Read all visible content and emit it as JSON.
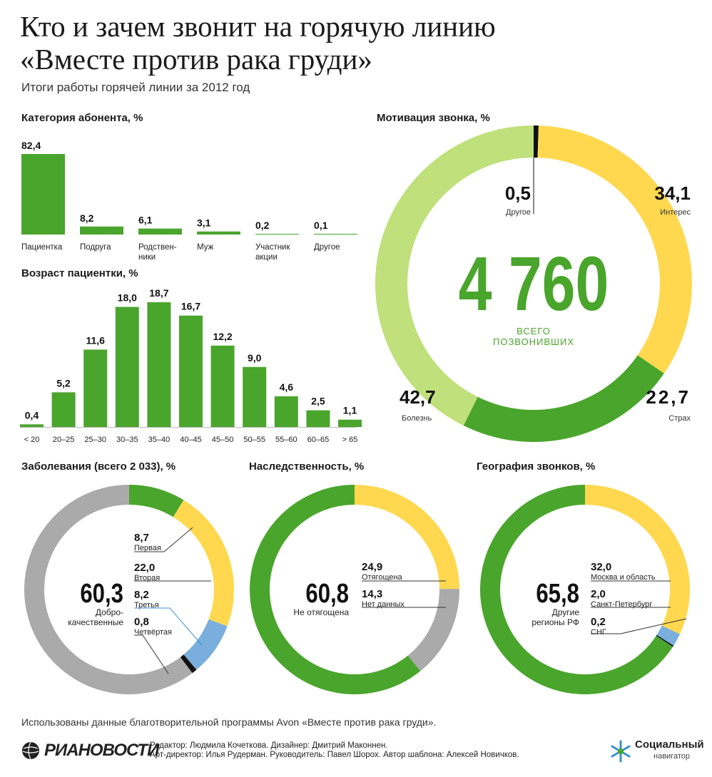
{
  "header": {
    "title_line1": "Кто и зачем звонит на горячую линию",
    "title_line2": "«Вместе против рака груди»",
    "subtitle": "Итоги работы горячей линии за 2012 год"
  },
  "colors": {
    "green": "#4aa52c",
    "light_green": "#bfe07a",
    "yellow": "#ffd84f",
    "gray": "#aaaaaa",
    "blue": "#7aaedc",
    "black": "#111111"
  },
  "chart_data": [
    {
      "id": "category",
      "type": "bar",
      "title": "Категория абонента, %",
      "categories": [
        "Пациентка",
        "Подруга",
        "Родствен-\nники",
        "Муж",
        "Участник\nакции",
        "Другое"
      ],
      "values": [
        82.4,
        8.2,
        6.1,
        3.1,
        0.2,
        0.1
      ],
      "value_labels": [
        "82,4",
        "8,2",
        "6,1",
        "3,1",
        "0,2",
        "0,1"
      ]
    },
    {
      "id": "age",
      "type": "bar",
      "title": "Возраст пациентки, %",
      "categories": [
        "< 20",
        "20–25",
        "25–30",
        "30–35",
        "35–40",
        "40–45",
        "45–50",
        "50–55",
        "55–60",
        "60–65",
        "> 65"
      ],
      "values": [
        0.4,
        5.2,
        11.6,
        18.0,
        18.7,
        16.7,
        12.2,
        9.0,
        4.6,
        2.5,
        1.1
      ],
      "value_labels": [
        "0,4",
        "5,2",
        "11,6",
        "18,0",
        "18,7",
        "16,7",
        "12,2",
        "9,0",
        "4,6",
        "2,5",
        "1,1"
      ]
    },
    {
      "id": "motivation",
      "type": "pie",
      "title": "Мотивация звонка, %",
      "center_value": "4 760",
      "center_label": "ВСЕГО\nПОЗВОНИВШИХ",
      "slices": [
        {
          "name": "Другое",
          "value": 0.5,
          "label": "0,5",
          "color": "#111111"
        },
        {
          "name": "Интерес",
          "value": 34.1,
          "label": "34,1",
          "color": "#ffd84f"
        },
        {
          "name": "Страх",
          "value": 22.7,
          "label": "22,7",
          "color": "#4aa52c"
        },
        {
          "name": "Болезнь",
          "value": 42.7,
          "label": "42,7",
          "color": "#bfe07a"
        }
      ]
    },
    {
      "id": "diseases",
      "type": "pie",
      "title": "Заболевания (всего 2 033), %",
      "center_value": "60,3",
      "center_label": "Добро-\nкачественные",
      "slices": [
        {
          "name": "Первая",
          "value": 8.7,
          "label": "8,7",
          "color": "#4aa52c"
        },
        {
          "name": "Вторая",
          "value": 22.0,
          "label": "22,0",
          "color": "#ffd84f"
        },
        {
          "name": "Третья",
          "value": 8.2,
          "label": "8,2",
          "color": "#7aaedc"
        },
        {
          "name": "Четвёртая",
          "value": 0.8,
          "label": "0,8",
          "color": "#111111"
        },
        {
          "name": "Добро-качественные",
          "value": 60.3,
          "label": "60,3",
          "color": "#aaaaaa"
        }
      ]
    },
    {
      "id": "heredity",
      "type": "pie",
      "title": "Наследственность, %",
      "center_value": "60,8",
      "center_label": "Не отягощена",
      "slices": [
        {
          "name": "Отягощена",
          "value": 24.9,
          "label": "24,9",
          "color": "#ffd84f"
        },
        {
          "name": "Нет данных",
          "value": 14.3,
          "label": "14,3",
          "color": "#aaaaaa"
        },
        {
          "name": "Не отягощена",
          "value": 60.8,
          "label": "60,8",
          "color": "#4aa52c"
        }
      ]
    },
    {
      "id": "geography",
      "type": "pie",
      "title": "География звонков, %",
      "center_value": "65,8",
      "center_label": "Другие\nрегионы РФ",
      "slices": [
        {
          "name": "Москва и область",
          "value": 32.0,
          "label": "32,0",
          "color": "#ffd84f"
        },
        {
          "name": "Санкт-Петербург",
          "value": 2.0,
          "label": "2,0",
          "color": "#7aaedc"
        },
        {
          "name": "СНГ",
          "value": 0.2,
          "label": "0,2",
          "color": "#111111"
        },
        {
          "name": "Другие регионы РФ",
          "value": 65.8,
          "label": "65,8",
          "color": "#4aa52c"
        }
      ]
    }
  ],
  "footer": {
    "note": "Использованы данные благотворительной программы Avon «Вместе против рака груди».",
    "credits_line1": "Редактор: Людмила Кочеткова. Дизайнер: Дмитрий Маконнен.",
    "credits_line2": "Арт-директор: Илья Рудерман. Руководитель: Павел Шорох. Автор шаблона: Алексей Новичков.",
    "ria_logo_text": "РИАНОВОСТИ",
    "sn_logo_line1": "Социальный",
    "sn_logo_line2": "навигатор"
  }
}
